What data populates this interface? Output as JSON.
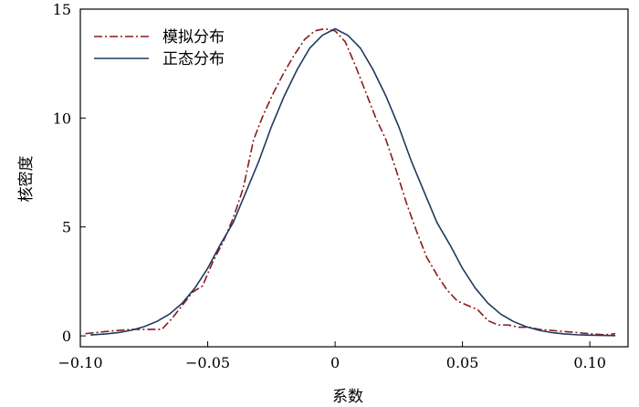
{
  "chart_data": {
    "type": "line",
    "title": "",
    "xlabel": "系数",
    "ylabel": "核密度",
    "xlim": [
      -0.1,
      0.115
    ],
    "ylim": [
      -0.5,
      15
    ],
    "xticks": [
      -0.1,
      -0.05,
      0,
      0.05,
      0.1
    ],
    "xtick_labels": [
      "−0.10",
      "−0.05",
      "0",
      "0.05",
      "0.10"
    ],
    "yticks": [
      0,
      5,
      10,
      15
    ],
    "ytick_labels": [
      "0",
      "5",
      "10",
      "15"
    ],
    "grid": false,
    "legend_position": "top-left",
    "series": [
      {
        "name": "模拟分布",
        "color": "#8b1a1a",
        "style": "dashdot",
        "x": [
          -0.098,
          -0.09,
          -0.08,
          -0.072,
          -0.068,
          -0.064,
          -0.06,
          -0.056,
          -0.052,
          -0.048,
          -0.044,
          -0.04,
          -0.036,
          -0.032,
          -0.028,
          -0.024,
          -0.02,
          -0.016,
          -0.012,
          -0.008,
          -0.004,
          0,
          0.004,
          0.008,
          0.012,
          0.016,
          0.02,
          0.024,
          0.028,
          0.032,
          0.036,
          0.04,
          0.044,
          0.048,
          0.052,
          0.056,
          0.06,
          0.064,
          0.068,
          0.072,
          0.076,
          0.08,
          0.09,
          0.1,
          0.106,
          0.11
        ],
        "y": [
          0.1,
          0.2,
          0.3,
          0.3,
          0.3,
          0.8,
          1.4,
          2.0,
          2.3,
          3.4,
          4.3,
          5.4,
          6.8,
          9.0,
          10.2,
          11.2,
          12.1,
          12.9,
          13.6,
          14.0,
          14.1,
          14.0,
          13.5,
          12.4,
          11.2,
          10.0,
          9.0,
          7.6,
          6.1,
          4.8,
          3.6,
          2.8,
          2.1,
          1.6,
          1.4,
          1.2,
          0.7,
          0.5,
          0.5,
          0.4,
          0.4,
          0.3,
          0.2,
          0.1,
          0.05,
          0.1
        ]
      },
      {
        "name": "正态分布",
        "color": "#1f3a5f",
        "style": "solid",
        "mean": 0.0,
        "sd": 0.0283,
        "x": [
          -0.096,
          -0.09,
          -0.085,
          -0.08,
          -0.075,
          -0.07,
          -0.065,
          -0.06,
          -0.055,
          -0.05,
          -0.045,
          -0.04,
          -0.035,
          -0.03,
          -0.025,
          -0.02,
          -0.015,
          -0.01,
          -0.005,
          0,
          0.005,
          0.01,
          0.015,
          0.02,
          0.025,
          0.03,
          0.035,
          0.04,
          0.045,
          0.05,
          0.055,
          0.06,
          0.065,
          0.07,
          0.075,
          0.08,
          0.085,
          0.09,
          0.095,
          0.1,
          0.105,
          0.11
        ],
        "y": [
          0.04,
          0.09,
          0.15,
          0.26,
          0.42,
          0.66,
          1.0,
          1.5,
          2.2,
          3.1,
          4.2,
          5.2,
          6.6,
          8.0,
          9.6,
          11.0,
          12.2,
          13.2,
          13.8,
          14.1,
          13.8,
          13.2,
          12.2,
          11.0,
          9.6,
          8.0,
          6.6,
          5.2,
          4.2,
          3.1,
          2.2,
          1.5,
          1.0,
          0.66,
          0.42,
          0.26,
          0.15,
          0.09,
          0.05,
          0.03,
          0.02,
          0.01
        ]
      }
    ]
  }
}
